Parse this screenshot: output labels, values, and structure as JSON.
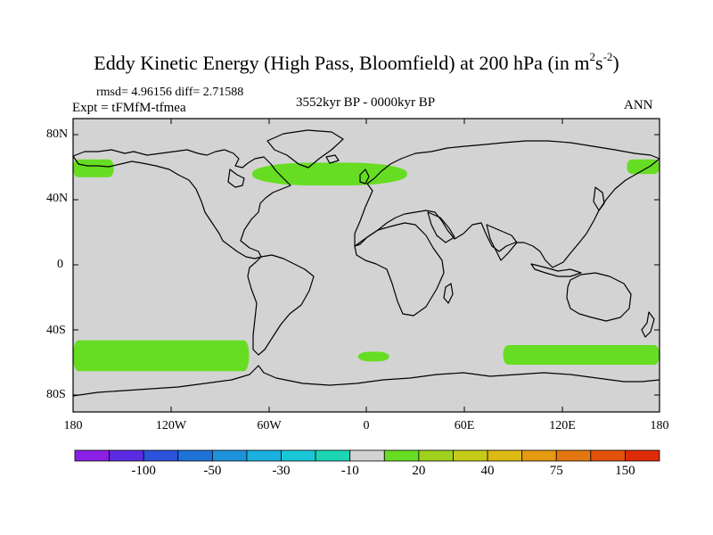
{
  "title": {
    "text": "Eddy Kinetic Energy (High Pass, Bloomfield) at 200 hPa (in m",
    "sup1": "2",
    "mid": "s",
    "sup2": "-2",
    "end": ")"
  },
  "stats": "rmsd= 4.96156 diff= 2.71588",
  "experiment": "Expt = tFMfM-tfmea",
  "period": "3552kyr BP - 0000kyr BP",
  "season": "ANN",
  "latitude_labels": [
    "80N",
    "40N",
    "0",
    "40S",
    "80S"
  ],
  "longitude_labels": [
    "180",
    "120W",
    "60W",
    "0",
    "60E",
    "120E",
    "180"
  ],
  "map": {
    "lon_range": [
      -180,
      180
    ],
    "lat_range": [
      -90,
      90
    ],
    "background_color": "#d3d3d3",
    "anomaly_fill_color": "#66dd22",
    "anomaly_regions": [
      {
        "name": "north-atlantic",
        "lon": [
          -70,
          25
        ],
        "lat": [
          49,
          63
        ],
        "value_bin": "10 to 20"
      },
      {
        "name": "north-pacific-west",
        "lon": [
          -180,
          -155
        ],
        "lat": [
          54,
          65
        ],
        "value_bin": "10 to 20"
      },
      {
        "name": "north-pacific-east",
        "lon": [
          160,
          180
        ],
        "lat": [
          56,
          65
        ],
        "value_bin": "10 to 20"
      },
      {
        "name": "south-pacific",
        "lon": [
          -180,
          -72
        ],
        "lat": [
          -65,
          -46
        ],
        "value_bin": "10 to 20"
      },
      {
        "name": "south-atlantic",
        "lon": [
          -5,
          14
        ],
        "lat": [
          -59,
          -53
        ],
        "value_bin": "10 to 20"
      },
      {
        "name": "south-indian-pacific",
        "lon": [
          84,
          180
        ],
        "lat": [
          -61,
          -49
        ],
        "value_bin": "10 to 20"
      }
    ]
  },
  "colorbar": {
    "colors": [
      "#8a1fe6",
      "#5b2be3",
      "#2c53db",
      "#1f73d8",
      "#1e93dc",
      "#1ab1e0",
      "#19c6d6",
      "#1cd6b4",
      "#d3d3d3",
      "#66dd22",
      "#9fd11c",
      "#c5cc18",
      "#dcbb14",
      "#e59a12",
      "#e4770f",
      "#e2520c",
      "#de2b0a"
    ],
    "labels": [
      {
        "text": "-100",
        "boundary": 2
      },
      {
        "text": "-50",
        "boundary": 4
      },
      {
        "text": "-30",
        "boundary": 6
      },
      {
        "text": "-10",
        "boundary": 8
      },
      {
        "text": "20",
        "boundary": 10
      },
      {
        "text": "40",
        "boundary": 12
      },
      {
        "text": "75",
        "boundary": 14
      },
      {
        "text": "150",
        "boundary": 16
      }
    ]
  }
}
